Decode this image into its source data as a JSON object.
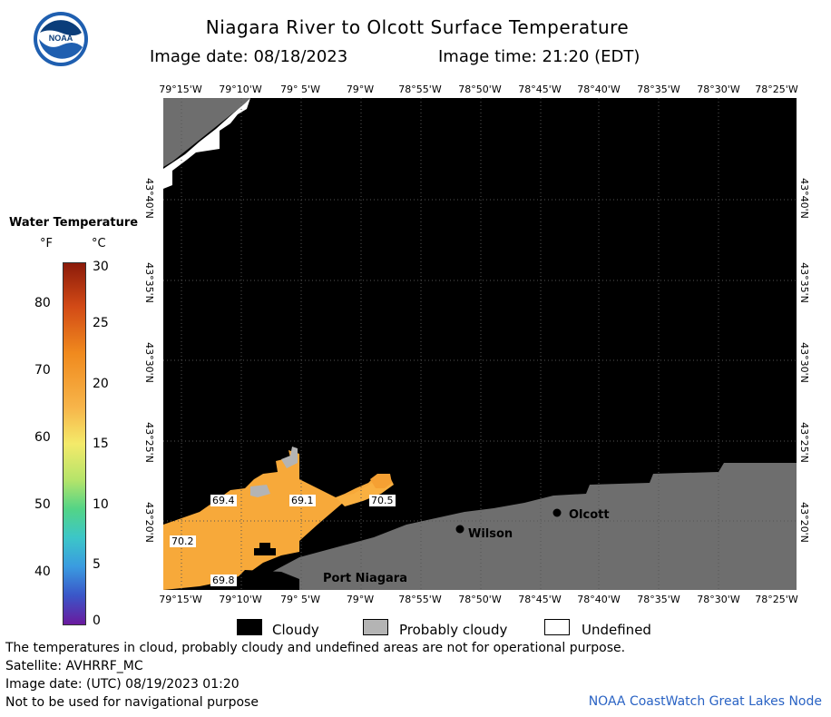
{
  "header": {
    "title": "Niagara River to Olcott Surface Temperature",
    "image_date": "Image date: 08/18/2023",
    "image_time": "Image time: 21:20 (EDT)"
  },
  "colors": {
    "cloudy": "#000000",
    "probably_cloudy": "#b4b4b4",
    "undefined": "#ffffff",
    "land": "#6e6e6e",
    "water_warm": "#f7a93a",
    "credit": "#2a63c4"
  },
  "map": {
    "lon_labels": [
      "79°15'W",
      "79°10'W",
      "79° 5'W",
      "79°W",
      "78°55'W",
      "78°50'W",
      "78°45'W",
      "78°40'W",
      "78°35'W",
      "78°30'W",
      "78°25'W"
    ],
    "lat_labels": [
      "43°40'N",
      "43°35'N",
      "43°30'N",
      "43°25'N",
      "43°20'N"
    ],
    "temp_labels": [
      "69.4",
      "69.1",
      "70.5",
      "70.2",
      "69.8"
    ],
    "places": [
      "Olcott",
      "Wilson",
      "Port Niagara"
    ]
  },
  "scale": {
    "title": "Water Temperature",
    "unit_f": "°F",
    "unit_c": "°C",
    "f_ticks": [
      "80",
      "70",
      "60",
      "50",
      "40"
    ],
    "c_ticks": [
      "30",
      "25",
      "20",
      "15",
      "10",
      "5",
      "0"
    ]
  },
  "legend": {
    "cloudy": "Cloudy",
    "probably_cloudy": "Probably cloudy",
    "undefined": "Undefined"
  },
  "notes": {
    "line1": "The temperatures in cloud, probably cloudy and undefined areas are not for operational purpose.",
    "line2": "Satellite: AVHRRF_MC",
    "line3": "Image date: (UTC) 08/19/2023  01:20",
    "line4": "Not to be used for navigational purpose"
  },
  "credit": "NOAA CoastWatch Great Lakes Node"
}
